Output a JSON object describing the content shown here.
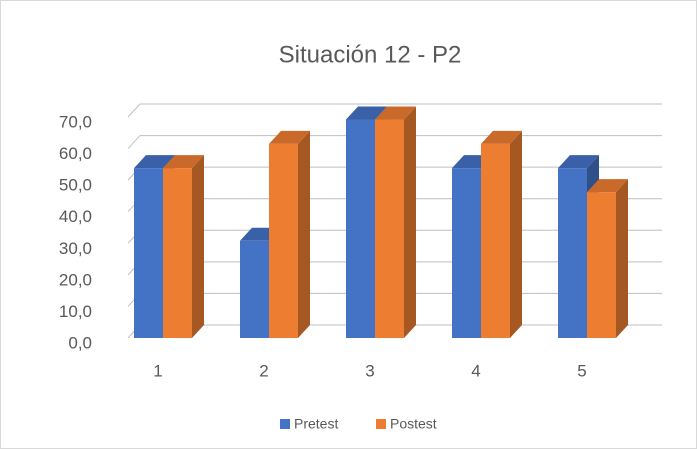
{
  "chart_data": {
    "type": "bar3d",
    "title": "Situación 12 - P2",
    "categories": [
      "1",
      "2",
      "3",
      "4",
      "5"
    ],
    "series": [
      {
        "name": "Pretest",
        "color": "#4472c4",
        "values": [
          53.8,
          30.8,
          69.2,
          53.8,
          53.8
        ]
      },
      {
        "name": "Postest",
        "color": "#ed7d31",
        "values": [
          53.8,
          61.5,
          69.2,
          61.5,
          46.2
        ]
      }
    ],
    "ylim": [
      0,
      70
    ],
    "yticks": [
      {
        "value": 0,
        "label": "0,0"
      },
      {
        "value": 10,
        "label": "10,0"
      },
      {
        "value": 20,
        "label": "20,0"
      },
      {
        "value": 30,
        "label": "30,0"
      },
      {
        "value": 40,
        "label": "40,0"
      },
      {
        "value": 50,
        "label": "50,0"
      },
      {
        "value": 60,
        "label": "60,0"
      },
      {
        "value": 70,
        "label": "70,0"
      }
    ],
    "grid": true,
    "legend": "bottom"
  }
}
